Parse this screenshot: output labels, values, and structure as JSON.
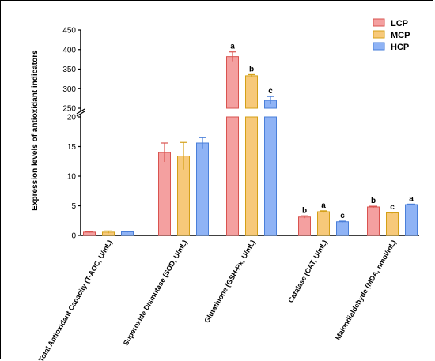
{
  "chart_data": {
    "type": "bar",
    "ylabel": "Expression levels of antioxidant indicators",
    "broken_axis": {
      "lower_range": [
        0,
        20
      ],
      "upper_range": [
        250,
        450
      ],
      "lower_ticks": [
        0,
        5,
        10,
        15,
        20
      ],
      "upper_ticks": [
        250,
        300,
        350,
        400,
        450
      ]
    },
    "categories": [
      "Total Antioxidant Capacity (T-AOC, U/mL)",
      "Superoxide Dismutase (SOD, U/mL)",
      "Glutathione (GSH-Px, U/mL)",
      "Catalase (CAT, U/mL)",
      "Malondialdehyde (MDA, nmol/mL)"
    ],
    "legend_position": "top-right",
    "grid": false,
    "series": [
      {
        "name": "LCP",
        "color": "#f4a0a0",
        "edge": "#d9534f",
        "values": [
          0.55,
          14.0,
          382,
          3.1,
          4.8
        ],
        "errors": [
          0.1,
          1.6,
          12,
          0.2,
          0.12
        ],
        "labels": [
          "",
          "",
          "a",
          "b",
          "b"
        ]
      },
      {
        "name": "MCP",
        "color": "#f7c97a",
        "edge": "#d4a017",
        "values": [
          0.55,
          13.4,
          333,
          4.0,
          3.8
        ],
        "errors": [
          0.2,
          2.3,
          3,
          0.15,
          0.1
        ],
        "labels": [
          "",
          "",
          "b",
          "a",
          "c"
        ]
      },
      {
        "name": "HCP",
        "color": "#8fb3f5",
        "edge": "#4a7fd9",
        "values": [
          0.6,
          15.6,
          270,
          2.3,
          5.2
        ],
        "errors": [
          0.1,
          0.9,
          10,
          0.1,
          0.08
        ],
        "labels": [
          "",
          "",
          "c",
          "c",
          "a"
        ]
      }
    ]
  }
}
